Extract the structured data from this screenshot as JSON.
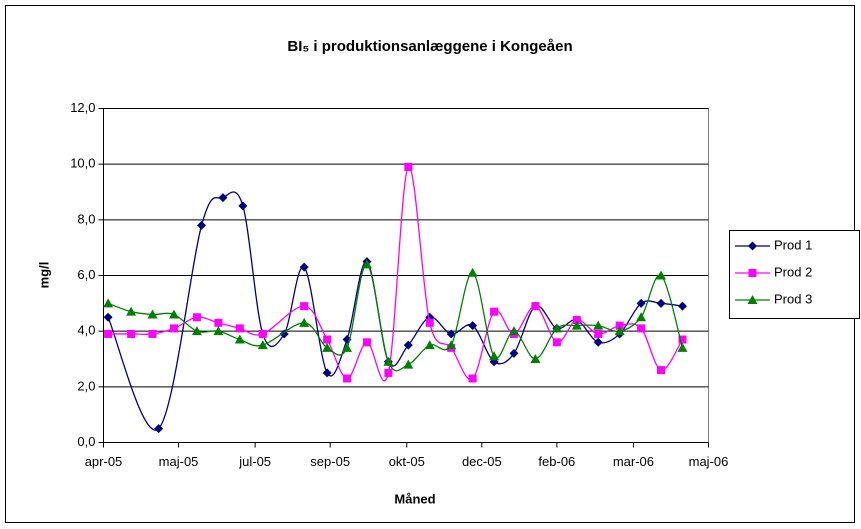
{
  "chart_data": {
    "type": "line",
    "title": "BI₅ i produktionsanlæggene i Kongeåen",
    "x_label": "Måned",
    "y_label": "mg/l",
    "xlim": [
      38443,
      38838
    ],
    "xticks": [
      {
        "value": 38443,
        "label": "apr-05"
      },
      {
        "value": 38492,
        "label": "maj-05"
      },
      {
        "value": 38542,
        "label": "jul-05"
      },
      {
        "value": 38591,
        "label": "sep-05"
      },
      {
        "value": 38641,
        "label": "okt-05"
      },
      {
        "value": 38690,
        "label": "dec-05"
      },
      {
        "value": 38739,
        "label": "feb-06"
      },
      {
        "value": 38789,
        "label": "mar-06"
      },
      {
        "value": 38838,
        "label": "maj-06"
      }
    ],
    "ylim": [
      0,
      12
    ],
    "yticks": [
      {
        "value": 0,
        "label": "0,0"
      },
      {
        "value": 2,
        "label": "2,0"
      },
      {
        "value": 4,
        "label": "4,0"
      },
      {
        "value": 6,
        "label": "6,0"
      },
      {
        "value": 8,
        "label": "8,0"
      },
      {
        "value": 10,
        "label": "10,0"
      },
      {
        "value": 12,
        "label": "12,0"
      }
    ],
    "grid": true,
    "legend": "right",
    "smooth": true,
    "series": [
      {
        "name": "Prod 1",
        "color": "#000080",
        "marker": "diamond",
        "x": [
          38446,
          38479,
          38507,
          38521,
          38534,
          38547,
          38561,
          38574,
          38589,
          38602,
          38615,
          38629,
          38642,
          38656,
          38670,
          38684,
          38698,
          38711,
          38725,
          38739,
          38752,
          38766,
          38780,
          38794,
          38807,
          38821
        ],
        "values": [
          4.5,
          0.5,
          7.8,
          8.8,
          8.5,
          3.9,
          3.9,
          6.3,
          2.5,
          3.7,
          6.5,
          2.9,
          3.5,
          4.5,
          3.9,
          4.2,
          2.9,
          3.2,
          4.9,
          4.1,
          4.4,
          3.6,
          3.9,
          5.0,
          5.0,
          4.9
        ]
      },
      {
        "name": "Prod 2",
        "color": "#ff00ff",
        "marker": "square",
        "x": [
          38446,
          38461,
          38475,
          38489,
          38504,
          38518,
          38532,
          38547,
          38574,
          38589,
          38602,
          38615,
          38629,
          38642,
          38656,
          38670,
          38684,
          38698,
          38711,
          38725,
          38739,
          38752,
          38766,
          38780,
          38794,
          38807,
          38821
        ],
        "values": [
          3.9,
          3.9,
          3.9,
          4.1,
          4.5,
          4.3,
          4.1,
          3.9,
          4.9,
          3.7,
          2.3,
          3.6,
          2.5,
          9.9,
          4.3,
          3.4,
          2.3,
          4.7,
          3.9,
          4.9,
          3.6,
          4.4,
          3.9,
          4.2,
          4.1,
          2.6,
          3.7
        ]
      },
      {
        "name": "Prod 3",
        "color": "#008000",
        "marker": "triangle",
        "x": [
          38446,
          38461,
          38475,
          38489,
          38504,
          38518,
          38532,
          38547,
          38574,
          38589,
          38602,
          38615,
          38629,
          38642,
          38656,
          38670,
          38684,
          38698,
          38711,
          38725,
          38739,
          38752,
          38766,
          38780,
          38794,
          38807,
          38821
        ],
        "values": [
          5.0,
          4.7,
          4.6,
          4.6,
          4.0,
          4.0,
          3.7,
          3.5,
          4.3,
          3.4,
          3.4,
          6.4,
          2.9,
          2.8,
          3.5,
          3.5,
          6.1,
          3.1,
          4.0,
          3.0,
          4.1,
          4.2,
          4.2,
          4.0,
          4.5,
          6.0,
          3.4
        ]
      }
    ]
  }
}
